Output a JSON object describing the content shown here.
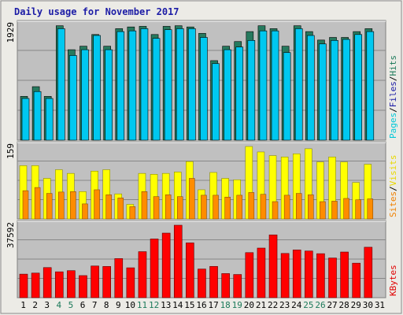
{
  "chart_data": {
    "type": "bar",
    "title": "Daily usage for November 2017",
    "x": [
      "1",
      "2",
      "3",
      "4",
      "5",
      "6",
      "7",
      "8",
      "9",
      "10",
      "11",
      "12",
      "13",
      "14",
      "15",
      "16",
      "17",
      "18",
      "19",
      "20",
      "21",
      "22",
      "23",
      "24",
      "25",
      "26",
      "27",
      "28",
      "29",
      "30",
      "31"
    ],
    "weekend_days": [
      "4",
      "5",
      "11",
      "12",
      "18",
      "19",
      "25",
      "26"
    ],
    "panels": [
      {
        "name": "hits_files_pages",
        "ymax_label": "1929",
        "ymax": 1929,
        "legend": [
          "Pages",
          "/",
          "Files",
          "/",
          "Hits"
        ],
        "legend_colors": [
          "#00c8d8",
          "#000000",
          "#1c1ca6",
          "#000000",
          "#1c7a5a"
        ],
        "series": [
          {
            "name": "Hits",
            "color": "#267a5e",
            "values": [
              735,
              898,
              735,
              1920,
              1518,
              1577,
              1773,
              1577,
              1871,
              1900,
              1910,
              1773,
              1910,
              1920,
              1900,
              1792,
              1335,
              1577,
              1655,
              1822,
              1920,
              1871,
              1577,
              1920,
              1822,
              1680,
              1724,
              1724,
              1822,
              1871,
              null
            ]
          },
          {
            "name": "Files",
            "color": "#00c8f0",
            "values": [
              700,
              816,
              700,
              1871,
              1421,
              1518,
              1757,
              1518,
              1822,
              1834,
              1871,
              1708,
              1854,
              1871,
              1871,
              1724,
              1285,
              1518,
              1563,
              1674,
              1834,
              1834,
              1470,
              1871,
              1757,
              1615,
              1674,
              1691,
              1773,
              1822,
              null
            ]
          },
          {
            "name": "Pages",
            "color": "#00c8f0",
            "values": [
              700,
              816,
              700,
              1871,
              1421,
              1518,
              1757,
              1518,
              1822,
              1834,
              1871,
              1708,
              1854,
              1871,
              1871,
              1724,
              1285,
              1518,
              1563,
              1674,
              1834,
              1834,
              1470,
              1871,
              1757,
              1615,
              1674,
              1691,
              1773,
              1822,
              null
            ]
          }
        ]
      },
      {
        "name": "visits_sites",
        "ymax_label": "159",
        "ymax": 159,
        "legend": [
          "Sites",
          "/",
          "Visits"
        ],
        "legend_colors": [
          "#f08000",
          "#000000",
          "#e8d800"
        ],
        "series": [
          {
            "name": "Visits",
            "color": "#ffff00",
            "values": [
              117,
              117,
              89,
              108,
              100,
              60,
              105,
              108,
              55,
              32,
              100,
              98,
              100,
              103,
              126,
              64,
              102,
              89,
              86,
              159,
              147,
              139,
              136,
              143,
              154,
              125,
              136,
              125,
              80,
              120,
              null
            ]
          },
          {
            "name": "Sites",
            "color": "#ff8c00",
            "values": [
              62,
              69,
              56,
              59,
              60,
              33,
              64,
              53,
              46,
              27,
              60,
              49,
              53,
              49,
              89,
              52,
              52,
              48,
              52,
              58,
              54,
              38,
              52,
              56,
              53,
              38,
              39,
              45,
              42,
              44,
              null
            ]
          }
        ]
      },
      {
        "name": "kbytes",
        "ymax_label": "37592",
        "ymax": 37592,
        "legend": [
          "KBytes"
        ],
        "legend_colors": [
          "#e00000"
        ],
        "series": [
          {
            "name": "KBytes",
            "color": "#ff0000",
            "values": [
              12210,
              12760,
              15620,
              13420,
              14020,
              11460,
              16440,
              16200,
              20290,
              15500,
              23880,
              30460,
              33500,
              37592,
              28420,
              14860,
              16230,
              12510,
              12030,
              23380,
              25740,
              32580,
              22950,
              24760,
              24210,
              22830,
              20580,
              23690,
              17910,
              26180,
              null
            ]
          }
        ]
      }
    ]
  }
}
